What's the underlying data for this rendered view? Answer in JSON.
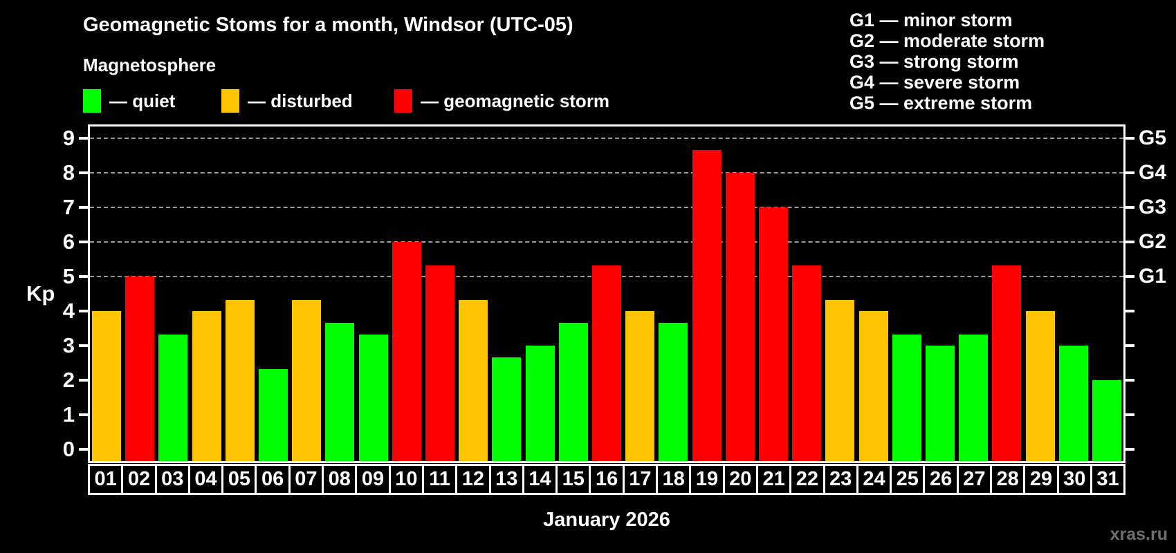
{
  "header": {
    "title": "Geomagnetic Stoms for a month, Windsor (UTC-05)",
    "subtitle": "Magnetosphere"
  },
  "legend": {
    "items": [
      {
        "key": "quiet",
        "label": "— quiet",
        "color": "#00ff00"
      },
      {
        "key": "disturbed",
        "label": "— disturbed",
        "color": "#ffc400"
      },
      {
        "key": "storm",
        "label": "— geomagnetic storm",
        "color": "#ff0000"
      }
    ]
  },
  "g_legend": {
    "items": [
      "G1 — minor storm",
      "G2 — moderate storm",
      "G3 — strong storm",
      "G4 — severe storm",
      "G5 — extreme storm"
    ]
  },
  "y_axis": {
    "label": "Kp",
    "ticks": [
      0,
      1,
      2,
      3,
      4,
      5,
      6,
      7,
      8,
      9
    ]
  },
  "right_axis": {
    "labels": [
      {
        "value": 9,
        "label": "G5"
      },
      {
        "value": 8,
        "label": "G4"
      },
      {
        "value": 7,
        "label": "G3"
      },
      {
        "value": 6,
        "label": "G2"
      },
      {
        "value": 5,
        "label": "G1"
      }
    ]
  },
  "footer": {
    "watermark": "xras.ru"
  },
  "chart_data": {
    "type": "bar",
    "title": "Geomagnetic Stoms for a month, Windsor (UTC-05)",
    "xlabel": "January 2026",
    "ylabel": "Kp",
    "ylim": [
      0,
      9.4
    ],
    "grid": "dashed horizontal at storm levels only",
    "gridlines": [
      5,
      6,
      7,
      8,
      9
    ],
    "legend_position": "top-left",
    "categories": [
      "01",
      "02",
      "03",
      "04",
      "05",
      "06",
      "07",
      "08",
      "09",
      "10",
      "11",
      "12",
      "13",
      "14",
      "15",
      "16",
      "17",
      "18",
      "19",
      "20",
      "21",
      "22",
      "23",
      "24",
      "25",
      "26",
      "27",
      "28",
      "29",
      "30",
      "31"
    ],
    "values": [
      4,
      5,
      3.33,
      4,
      4.33,
      2.33,
      4.33,
      3.67,
      3.33,
      6,
      5.33,
      4.33,
      2.67,
      3,
      3.67,
      5.33,
      4,
      3.67,
      8.67,
      8,
      7,
      5.33,
      4.33,
      4,
      3.33,
      3,
      3.33,
      5.33,
      4,
      3,
      2
    ],
    "statuses": [
      "disturbed",
      "storm",
      "quiet",
      "disturbed",
      "disturbed",
      "quiet",
      "disturbed",
      "quiet",
      "quiet",
      "storm",
      "storm",
      "disturbed",
      "quiet",
      "quiet",
      "quiet",
      "storm",
      "disturbed",
      "quiet",
      "storm",
      "storm",
      "storm",
      "storm",
      "disturbed",
      "disturbed",
      "quiet",
      "quiet",
      "quiet",
      "storm",
      "disturbed",
      "quiet",
      "quiet"
    ],
    "colors": {
      "quiet": "#00ff00",
      "disturbed": "#ffc400",
      "storm": "#ff0000"
    }
  }
}
